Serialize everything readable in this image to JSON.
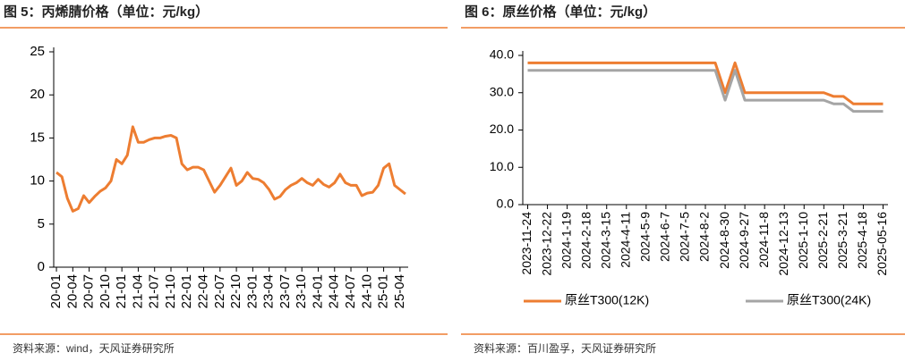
{
  "chart_data": [
    {
      "type": "line",
      "title": "图 5：丙烯腈价格（单位：元/kg）",
      "source": "资料来源：wind，天风证券研究所",
      "categories": [
        "20-01",
        null,
        null,
        "20-04",
        null,
        null,
        "20-07",
        null,
        null,
        "20-10",
        null,
        null,
        "21-01",
        null,
        null,
        "21-04",
        null,
        null,
        "21-07",
        null,
        null,
        "21-10",
        null,
        null,
        "22-01",
        null,
        null,
        "22-04",
        null,
        null,
        "22-07",
        null,
        null,
        "22-10",
        null,
        null,
        "23-01",
        null,
        null,
        "23-04",
        null,
        null,
        "23-07",
        null,
        null,
        "23-10",
        null,
        null,
        "24-01",
        null,
        null,
        "24-04",
        null,
        null,
        "24-07",
        null,
        null,
        "24-10",
        null,
        null,
        "25-01",
        null,
        null,
        "25-04",
        null
      ],
      "color": "#ED7D31",
      "values": [
        11,
        10.5,
        8,
        6.5,
        6.8,
        8.3,
        7.5,
        8.2,
        8.8,
        9.2,
        10,
        12.5,
        12,
        13,
        16.3,
        14.5,
        14.5,
        14.8,
        15,
        15,
        15.2,
        15.3,
        15,
        12,
        11.3,
        11.6,
        11.6,
        11.3,
        10,
        8.7,
        9.5,
        10.5,
        11.5,
        9.5,
        10,
        11,
        10.3,
        10.2,
        9.8,
        9,
        7.9,
        8.2,
        9,
        9.5,
        9.8,
        10.3,
        9.8,
        9.5,
        10.2,
        9.6,
        9.3,
        9.8,
        10.8,
        9.8,
        9.5,
        9.5,
        8.3,
        8.6,
        8.7,
        9.5,
        11.5,
        12,
        9.5,
        9,
        8.5
      ],
      "ylim": [
        0,
        25
      ],
      "yticks": [
        0,
        5,
        10,
        15,
        20,
        25
      ]
    },
    {
      "type": "line",
      "title": "图 6：原丝价格（单位：元/kg）",
      "source": "资料来源：百川盈孚，天风证券研究所",
      "categories": [
        "2023-11-24",
        null,
        "2023-12-22",
        null,
        "2024-1-19",
        null,
        "2024-2-18",
        null,
        "2024-3-15",
        null,
        "2024-4-11",
        null,
        "2024-5-9",
        null,
        "2024-6-7",
        null,
        "2024-7-5",
        null,
        "2024-8-2",
        null,
        "2024-8-30",
        null,
        "2024-9-27",
        null,
        "2024-11-8",
        null,
        "2024-12-13",
        null,
        "2025-1-10",
        null,
        "2025-2-21",
        null,
        "2025-3-21",
        null,
        "2025-4-18",
        null,
        "2025-05-16"
      ],
      "series": [
        {
          "name": "原丝T300(12K)",
          "color": "#ED7D31",
          "values": [
            38,
            38,
            38,
            38,
            38,
            38,
            38,
            38,
            38,
            38,
            38,
            38,
            38,
            38,
            38,
            38,
            38,
            38,
            38,
            38,
            30,
            38,
            30,
            30,
            30,
            30,
            30,
            30,
            30,
            30,
            30,
            29,
            29,
            27,
            27,
            27,
            27
          ]
        },
        {
          "name": "原丝T300(24K)",
          "color": "#A5A5A5",
          "values": [
            36,
            36,
            36,
            36,
            36,
            36,
            36,
            36,
            36,
            36,
            36,
            36,
            36,
            36,
            36,
            36,
            36,
            36,
            36,
            36,
            28,
            36,
            28,
            28,
            28,
            28,
            28,
            28,
            28,
            28,
            28,
            27,
            27,
            25,
            25,
            25,
            25
          ]
        }
      ],
      "ylim": [
        0,
        40
      ],
      "yticks": [
        {
          "value": 0,
          "label": "0.0"
        },
        {
          "value": 10,
          "label": "10.0"
        },
        {
          "value": 20,
          "label": "20.0"
        },
        {
          "value": 30,
          "label": "30.0"
        },
        {
          "value": 40,
          "label": "40.0"
        }
      ],
      "legend": "bottom"
    }
  ]
}
